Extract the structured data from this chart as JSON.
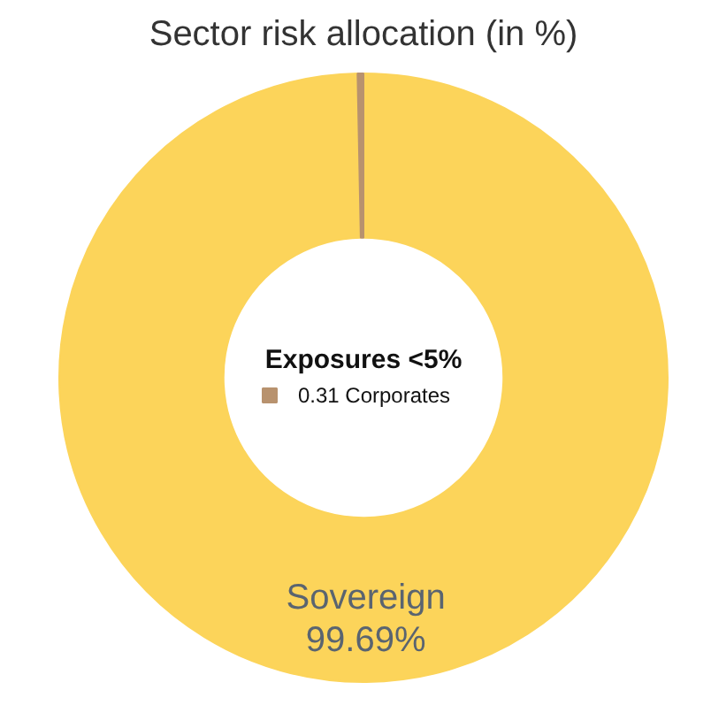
{
  "chart_data": {
    "type": "donut",
    "title": "Sector risk allocation (in %)",
    "categories": [
      "Sovereign",
      "Corporates"
    ],
    "values": [
      99.69,
      0.31
    ],
    "colors": [
      "#fcd45a",
      "#b8926e"
    ],
    "value_labels": [
      "99.69%",
      "0.31"
    ],
    "annotations": [
      "Exposures <5%"
    ]
  }
}
